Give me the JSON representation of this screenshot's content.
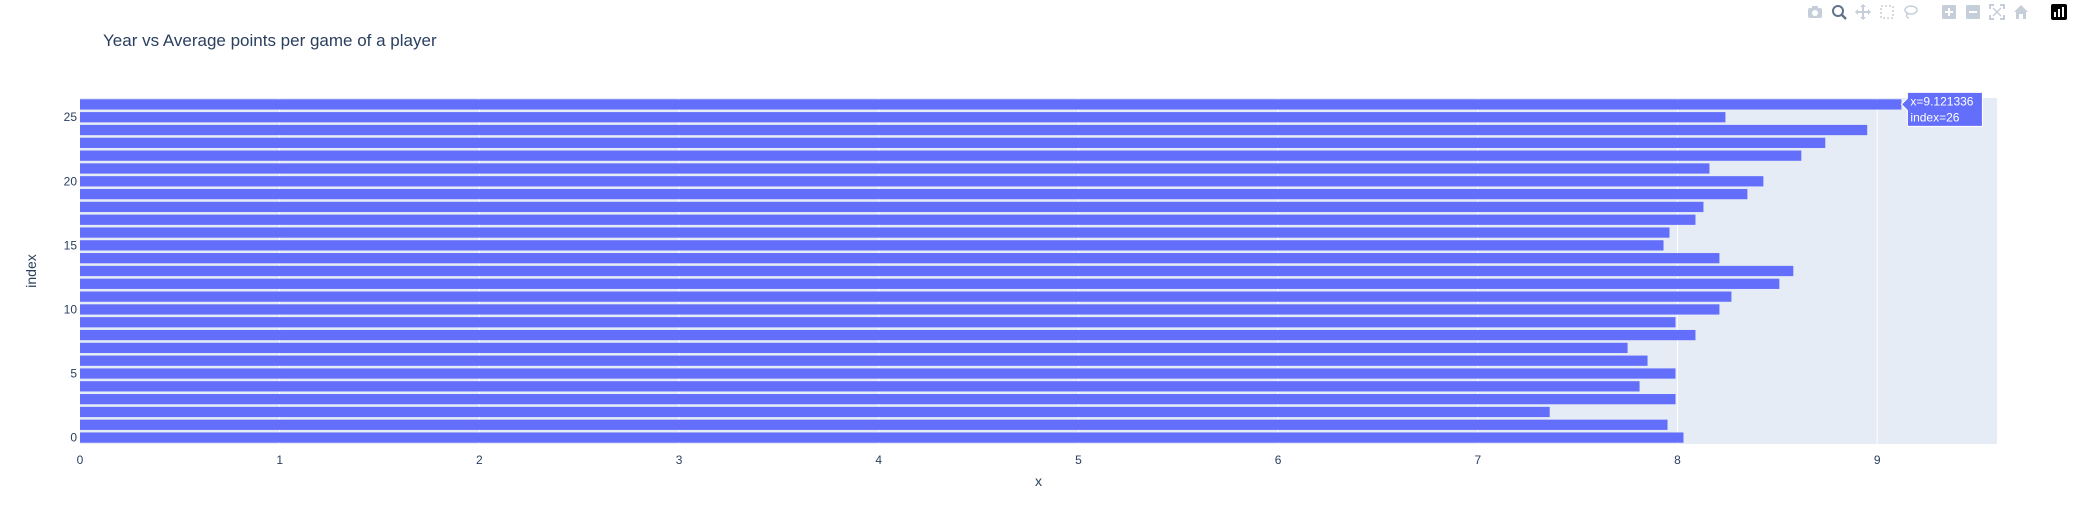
{
  "title": "Year vs Average points per game of a player",
  "toolbar": {
    "buttons": [
      {
        "name": "camera-icon"
      },
      {
        "name": "zoom-icon",
        "active": true
      },
      {
        "name": "pan-icon"
      },
      {
        "name": "box-select-icon"
      },
      {
        "name": "lasso-select-icon"
      },
      {
        "name": "gap"
      },
      {
        "name": "zoom-in-icon"
      },
      {
        "name": "zoom-out-icon"
      },
      {
        "name": "autoscale-icon"
      },
      {
        "name": "reset-axes-icon"
      },
      {
        "name": "gap"
      },
      {
        "name": "plotly-logo-icon"
      }
    ]
  },
  "hover": {
    "line1": "x=9.121336",
    "line2": "index=26"
  },
  "colors": {
    "bar": "#636efa",
    "plot_bg": "#e5ecf6",
    "grid": "#ffffff",
    "text": "#2a3f5f",
    "modebar_icon": "#c6cfd9",
    "modebar_active": "#5f7389"
  },
  "chart_data": {
    "type": "bar",
    "orientation": "horizontal",
    "title": "Year vs Average points per game of a player",
    "xlabel": "x",
    "ylabel": "index",
    "xlim": [
      0,
      9.6
    ],
    "ylim": [
      -0.5,
      26.5
    ],
    "xticks": [
      0,
      1,
      2,
      3,
      4,
      5,
      6,
      7,
      8,
      9
    ],
    "yticks": [
      0,
      5,
      10,
      15,
      20,
      25
    ],
    "grid": true,
    "categories": [
      0,
      1,
      2,
      3,
      4,
      5,
      6,
      7,
      8,
      9,
      10,
      11,
      12,
      13,
      14,
      15,
      16,
      17,
      18,
      19,
      20,
      21,
      22,
      23,
      24,
      25,
      26
    ],
    "values": [
      8.03,
      7.95,
      7.36,
      7.99,
      7.81,
      7.99,
      7.85,
      7.75,
      8.09,
      7.99,
      8.21,
      8.27,
      8.51,
      8.58,
      8.21,
      7.93,
      7.96,
      8.09,
      8.13,
      8.35,
      8.43,
      8.16,
      8.62,
      8.74,
      8.95,
      8.24,
      9.121336
    ]
  }
}
